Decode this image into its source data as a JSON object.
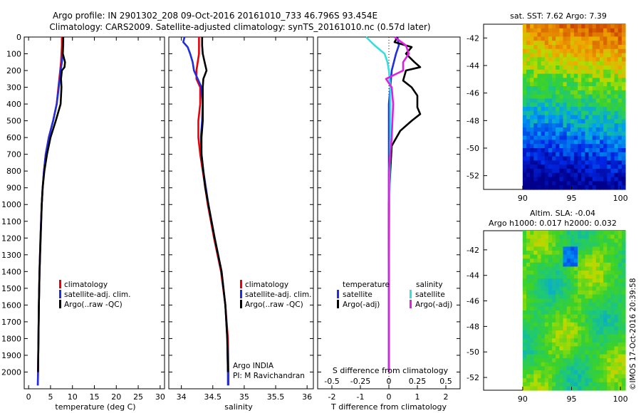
{
  "header": {
    "line1": "Argo profile: IN 2901302_208 09-Oct-2016 20161010_733 46.796S 93.454E",
    "line2": "Climatology: CARS2009. Satellite-adjusted climatology: synTS_20161010.nc (0.57d later)"
  },
  "colors": {
    "climatology": "#e8000b",
    "satellite": "#1f2fe0",
    "argo": "#000000",
    "satellite_s": "#33e0e0",
    "argo_s": "#e020e0"
  },
  "panels": {
    "temperature": {
      "xlabel": "temperature (deg C)",
      "legend": [
        "climatology",
        "satellite-adj. clim.",
        "Argo(..raw -QC)"
      ]
    },
    "salinity": {
      "xlabel": "salinity",
      "legend": [
        "climatology",
        "satellite-adj. clim.",
        "Argo(..raw -QC)"
      ],
      "annotation": [
        "Argo INDIA",
        "PI: M Ravichandran"
      ]
    },
    "difference": {
      "xlabel": "T difference from climatology",
      "top_label": "S difference from climatology",
      "legend_head_t": "temperature",
      "legend_head_s": "salinity",
      "legend_t": [
        "satellite",
        "Argo(-adj)"
      ],
      "legend_s": [
        "satellite",
        "Argo(-adj)"
      ]
    },
    "map_sst": {
      "title": "sat. SST: 7.62 Argo: 7.39"
    },
    "map_sla": {
      "title1": "Altim. SLA: -0.04",
      "title2": "Argo h1000: 0.017 h2000: 0.032"
    },
    "footer_vertical": "©IMOS 17-Oct-2016 20:39:58"
  },
  "chart_data": [
    {
      "type": "line",
      "name": "temperature profile",
      "xlabel": "temperature (deg C)",
      "ylabel": "",
      "xlim": [
        -1,
        31
      ],
      "ylim": [
        2100,
        0
      ],
      "xticks": [
        0,
        5,
        10,
        15,
        20,
        25,
        30
      ],
      "yticks": [
        0,
        100,
        200,
        300,
        400,
        500,
        600,
        700,
        800,
        900,
        1000,
        1100,
        1200,
        1300,
        1400,
        1500,
        1600,
        1700,
        1800,
        1900,
        2000
      ],
      "series": [
        {
          "name": "climatology",
          "depth": [
            0,
            50,
            100,
            150,
            200,
            300,
            400,
            500,
            600,
            700,
            800,
            900,
            1000,
            1200,
            1400,
            1600,
            1800,
            2000,
            2080
          ],
          "values": [
            7.6,
            7.6,
            7.5,
            7.4,
            7.2,
            6.8,
            6.4,
            5.6,
            4.6,
            3.9,
            3.5,
            3.2,
            3.0,
            2.7,
            2.5,
            2.35,
            2.25,
            2.15,
            2.1
          ]
        },
        {
          "name": "satellite-adj. clim.",
          "depth": [
            0,
            50,
            100,
            150,
            200,
            300,
            400,
            500,
            600,
            700,
            800,
            900,
            1000,
            1200,
            1400,
            1600,
            1800,
            2000,
            2080
          ],
          "values": [
            7.9,
            7.9,
            7.8,
            7.6,
            7.3,
            6.9,
            6.4,
            5.6,
            4.6,
            3.9,
            3.5,
            3.2,
            3.0,
            2.7,
            2.5,
            2.35,
            2.25,
            2.15,
            2.1
          ]
        },
        {
          "name": "Argo(..raw -QC)",
          "depth": [
            0,
            50,
            100,
            150,
            180,
            200,
            250,
            300,
            400,
            500,
            600,
            700,
            800,
            900,
            1000,
            1200,
            1400,
            1600,
            1800,
            2000
          ],
          "values": [
            7.9,
            7.8,
            7.8,
            8.3,
            8.2,
            7.6,
            7.4,
            7.5,
            7.3,
            6.2,
            5.0,
            4.2,
            3.6,
            3.2,
            3.0,
            2.75,
            2.5,
            2.35,
            2.25,
            2.15
          ]
        }
      ]
    },
    {
      "type": "line",
      "name": "salinity profile",
      "xlabel": "salinity",
      "ylabel": "",
      "xlim": [
        33.8,
        36.1
      ],
      "ylim": [
        2100,
        0
      ],
      "xticks": [
        34,
        34.5,
        35,
        35.5,
        36
      ],
      "series": [
        {
          "name": "climatology",
          "depth": [
            0,
            50,
            100,
            150,
            200,
            250,
            300,
            400,
            500,
            600,
            700,
            800,
            900,
            1000,
            1200,
            1400,
            1600,
            1800,
            2000,
            2080
          ],
          "values": [
            34.28,
            34.28,
            34.28,
            34.26,
            34.24,
            34.24,
            34.3,
            34.3,
            34.27,
            34.27,
            34.3,
            34.34,
            34.38,
            34.42,
            34.52,
            34.63,
            34.7,
            34.74,
            34.75,
            34.75
          ]
        },
        {
          "name": "satellite-adj. clim.",
          "depth": [
            0,
            30,
            60,
            100,
            150,
            200,
            250,
            300,
            400,
            500,
            600,
            700,
            800,
            900,
            1000,
            1200,
            1400,
            1600,
            1800,
            2000,
            2080
          ],
          "values": [
            34.05,
            34.03,
            34.1,
            34.14,
            34.18,
            34.2,
            34.26,
            34.32,
            34.34,
            34.33,
            34.31,
            34.32,
            34.35,
            34.39,
            34.43,
            34.53,
            34.64,
            34.7,
            34.73,
            34.74,
            34.74
          ]
        },
        {
          "name": "Argo(..raw -QC)",
          "depth": [
            0,
            50,
            100,
            150,
            200,
            250,
            300,
            400,
            500,
            600,
            700,
            800,
            900,
            1000,
            1200,
            1400,
            1600,
            1800,
            2000
          ],
          "values": [
            34.33,
            34.33,
            34.34,
            34.37,
            34.4,
            34.35,
            34.34,
            34.34,
            34.34,
            34.32,
            34.32,
            34.35,
            34.38,
            34.43,
            34.53,
            34.64,
            34.7,
            34.73,
            34.74
          ]
        }
      ]
    },
    {
      "type": "line",
      "name": "difference from climatology",
      "xlabel": "T difference from climatology",
      "xlim": [
        -2.5,
        2.5
      ],
      "xticks": [
        -2,
        -1,
        0,
        1,
        2
      ],
      "top_xlabel": "S difference from climatology",
      "top_xticks": [
        -0.5,
        -0.25,
        0,
        0.25,
        0.5
      ],
      "series": [
        {
          "name": "temperature satellite",
          "depth": [
            0,
            50,
            100,
            200,
            300,
            400,
            600,
            800,
            1000,
            1400,
            2000
          ],
          "values": [
            0.3,
            0.35,
            0.25,
            0.1,
            0.05,
            0.0,
            0.0,
            0.0,
            0.0,
            0.0,
            0.0
          ]
        },
        {
          "name": "temperature Argo(-adj)",
          "depth": [
            0,
            30,
            60,
            100,
            150,
            180,
            200,
            260,
            300,
            350,
            420,
            460,
            500,
            560,
            650,
            800,
            1000,
            1400,
            2000
          ],
          "values": [
            0.3,
            0.2,
            0.8,
            0.6,
            0.9,
            1.1,
            0.6,
            0.5,
            0.8,
            1.0,
            1.0,
            1.1,
            0.8,
            0.4,
            0.1,
            0.05,
            0.0,
            0.0,
            0.0
          ]
        },
        {
          "name": "salinity satellite",
          "depth": [
            0,
            50,
            100,
            150,
            200,
            300,
            400,
            600,
            800,
            1000,
            1400,
            2000
          ],
          "values": [
            -0.8,
            -0.5,
            -0.15,
            -0.05,
            0.0,
            0.05,
            0.05,
            0.05,
            0.03,
            0.02,
            0.0,
            0.0
          ]
        },
        {
          "name": "salinity Argo(-adj)",
          "depth": [
            0,
            50,
            100,
            150,
            200,
            250,
            300,
            400,
            600,
            800,
            1000,
            1400,
            2000
          ],
          "values": [
            0.2,
            0.6,
            0.7,
            0.5,
            0.5,
            -0.1,
            0.1,
            0.15,
            0.1,
            0.0,
            0.0,
            0.0,
            0.0
          ]
        }
      ]
    },
    {
      "type": "heatmap",
      "name": "sat. SST map",
      "xlim": [
        86,
        100.5
      ],
      "ylim": [
        -53,
        -41
      ],
      "xticks": [
        90,
        95,
        100
      ],
      "yticks": [
        -42,
        -44,
        -46,
        -48,
        -50,
        -52
      ]
    },
    {
      "type": "heatmap",
      "name": "Altim. SLA map",
      "xlim": [
        86,
        100.5
      ],
      "ylim": [
        -53,
        -40.5
      ],
      "xticks": [
        90,
        95,
        100
      ],
      "yticks": [
        -42,
        -44,
        -46,
        -48,
        -50,
        -52
      ]
    }
  ]
}
